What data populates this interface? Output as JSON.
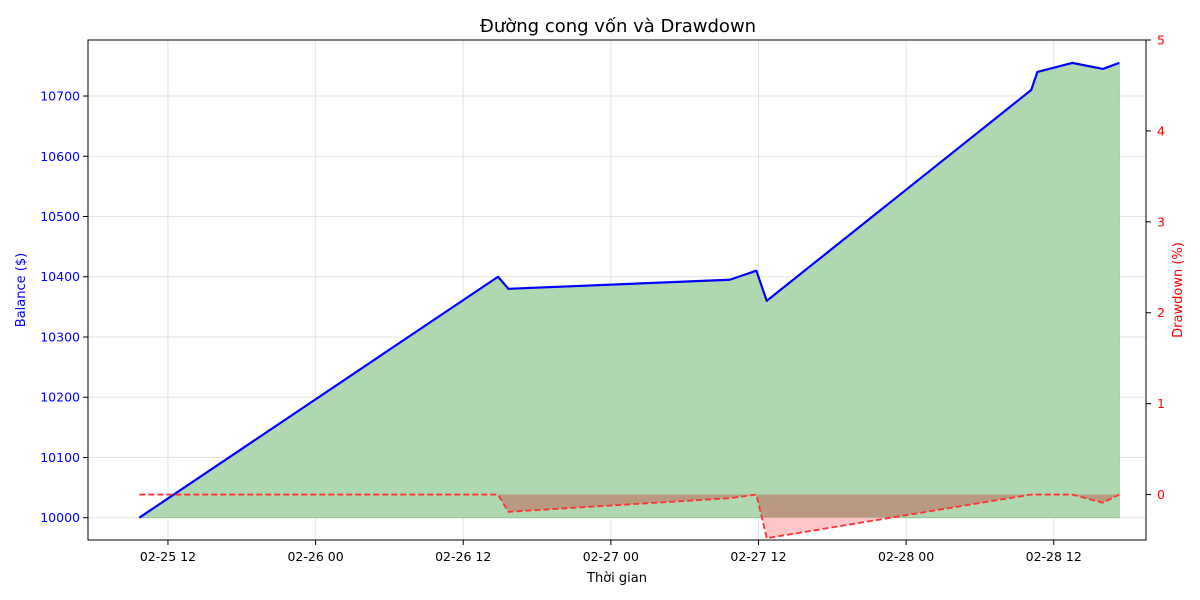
{
  "chart_data": {
    "type": "area",
    "title": "Đường cong vốn và Drawdown",
    "xlabel": "Thời gian",
    "ylabel_left": "Balance ($)",
    "ylabel_right": "Drawdown (%)",
    "x_ticks": [
      "02-25 12",
      "02-26 00",
      "02-26 12",
      "02-27 00",
      "02-27 12",
      "02-28 00",
      "02-28 12"
    ],
    "x_tick_hours": [
      12,
      24,
      36,
      48,
      60,
      72,
      84
    ],
    "x_range_hours": [
      5.5,
      91.5
    ],
    "y_left_ticks": [
      10000,
      10100,
      10200,
      10300,
      10400,
      10500,
      10600,
      10700
    ],
    "y_left_range": [
      9963,
      10793
    ],
    "y_right_ticks": [
      0,
      1,
      2,
      3,
      4,
      5
    ],
    "y_right_range": [
      -0.5,
      5
    ],
    "grid": true,
    "colors": {
      "balance_line": "#0000ff",
      "balance_fill": "#b0d8b0",
      "drawdown_line": "#ff3030",
      "drawdown_fill": "#ffc8c8",
      "overlap_fill": "#b89a80",
      "left_axis": "#0000ff",
      "right_axis": "#ff0000"
    },
    "series": [
      {
        "axis": "left",
        "points": [
          {
            "x": "02-25 09:40",
            "h": 9.67,
            "y": 10000
          },
          {
            "x": "02-26 14:50",
            "h": 38.83,
            "y": 10400
          },
          {
            "x": "02-26 15:40",
            "h": 39.67,
            "y": 10380
          },
          {
            "x": "02-27 09:40",
            "h": 57.67,
            "y": 10395
          },
          {
            "x": "02-27 11:50",
            "h": 59.83,
            "y": 10410
          },
          {
            "x": "02-27 12:40",
            "h": 60.67,
            "y": 10360
          },
          {
            "x": "02-28 10:10",
            "h": 82.17,
            "y": 10710
          },
          {
            "x": "02-28 10:40",
            "h": 82.67,
            "y": 10740
          },
          {
            "x": "02-28 13:30",
            "h": 85.5,
            "y": 10755
          },
          {
            "x": "02-28 16:00",
            "h": 88.0,
            "y": 10745
          },
          {
            "x": "02-28 17:20",
            "h": 89.33,
            "y": 10755
          }
        ]
      },
      {
        "axis": "right",
        "points": [
          {
            "h": 9.67,
            "y": 0
          },
          {
            "h": 38.83,
            "y": 0
          },
          {
            "h": 39.67,
            "y": -0.19
          },
          {
            "h": 57.67,
            "y": -0.04
          },
          {
            "h": 59.83,
            "y": 0
          },
          {
            "h": 60.67,
            "y": -0.48
          },
          {
            "h": 82.17,
            "y": 0
          },
          {
            "h": 85.5,
            "y": 0
          },
          {
            "h": 88.0,
            "y": -0.09
          },
          {
            "h": 89.33,
            "y": 0
          }
        ]
      }
    ]
  }
}
